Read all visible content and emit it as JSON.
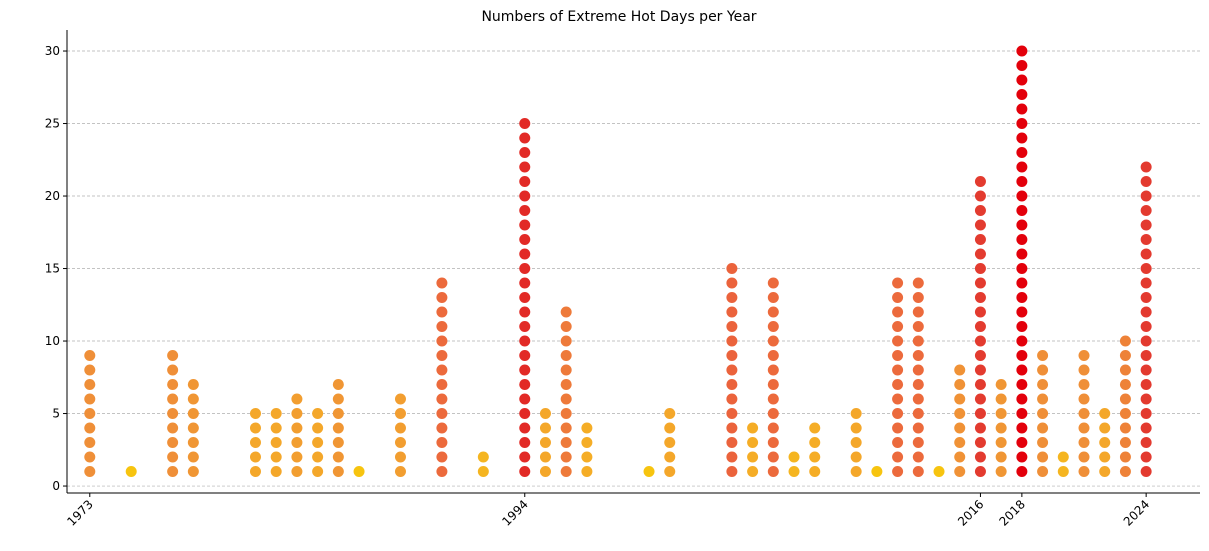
{
  "chart_data": {
    "type": "dot-strip",
    "title": "Numbers of Extreme Hot Days per Year",
    "x": [
      1973,
      1975,
      1977,
      1978,
      1981,
      1982,
      1983,
      1984,
      1985,
      1986,
      1988,
      1990,
      1992,
      1994,
      1995,
      1996,
      1997,
      2000,
      2001,
      2004,
      2005,
      2006,
      2007,
      2008,
      2010,
      2011,
      2012,
      2013,
      2014,
      2015,
      2016,
      2017,
      2018,
      2019,
      2020,
      2021,
      2022,
      2023,
      2024
    ],
    "values": [
      9,
      1,
      9,
      7,
      5,
      5,
      6,
      5,
      7,
      1,
      6,
      14,
      2,
      25,
      5,
      12,
      4,
      1,
      5,
      15,
      4,
      14,
      2,
      4,
      5,
      1,
      14,
      14,
      1,
      8,
      21,
      7,
      30,
      9,
      2,
      9,
      5,
      10,
      22
    ],
    "colors": [
      "#ef8f38",
      "#f7c40f",
      "#ef8f38",
      "#f09634",
      "#f4a72a",
      "#f4a72a",
      "#f29e30",
      "#f4a72a",
      "#f09634",
      "#f7c40f",
      "#f29e30",
      "#ec6a3c",
      "#f5b520",
      "#e22a26",
      "#f4a72a",
      "#ee7a3a",
      "#f5ad26",
      "#f7c40f",
      "#f4a72a",
      "#eb633c",
      "#f5ad26",
      "#ec6a3c",
      "#f5b520",
      "#f5ad26",
      "#f4a72a",
      "#f7c40f",
      "#ec6a3c",
      "#ec6a3c",
      "#f7c40f",
      "#f09236",
      "#e33b2f",
      "#f09634",
      "#e3000b",
      "#ef8f38",
      "#f5b520",
      "#ef8f38",
      "#f4a72a",
      "#ee8238",
      "#e33a2f"
    ],
    "xlim": [
      1971.9,
      2026.6
    ],
    "ylim": [
      -0.48,
      31.45
    ],
    "xticks": [
      1973,
      1994,
      2016,
      2018,
      2024
    ],
    "yticks": [
      0,
      5,
      10,
      15,
      20,
      25,
      30
    ],
    "grid": true
  }
}
